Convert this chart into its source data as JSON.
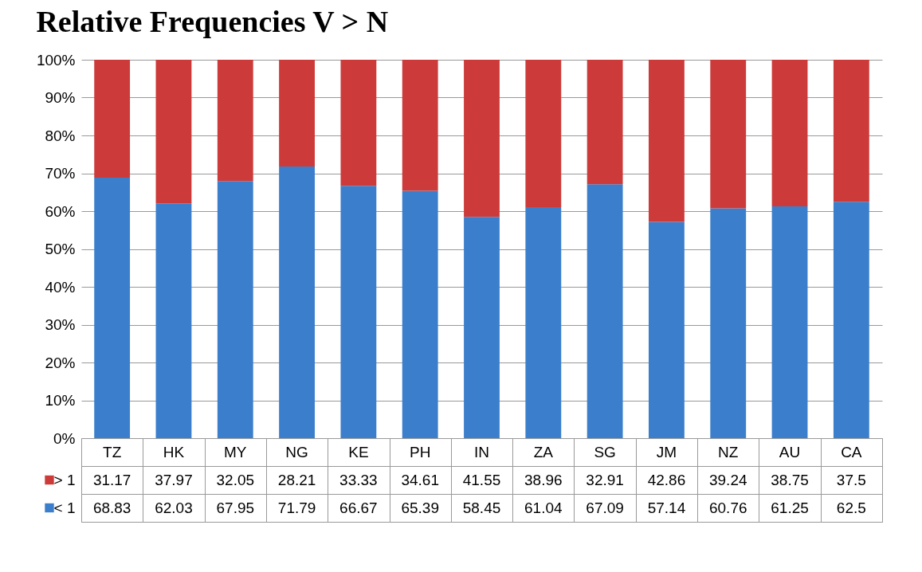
{
  "chart_data": {
    "type": "bar",
    "title": "Relative Frequencies V > N",
    "stacked": true,
    "data_labels": true,
    "grid": "y",
    "legend": "bottom",
    "categories": [
      "TZ",
      "HK",
      "MY",
      "NG",
      "KE",
      "PH",
      "IN",
      "ZA",
      "SG",
      "JM",
      "NZ",
      "AU",
      "CA"
    ],
    "ylim": [
      0,
      100
    ],
    "yticks": [
      {
        "value": 0,
        "label": "0%"
      },
      {
        "value": 10,
        "label": "10%"
      },
      {
        "value": 20,
        "label": "20%"
      },
      {
        "value": 30,
        "label": "30%"
      },
      {
        "value": 40,
        "label": "40%"
      },
      {
        "value": 50,
        "label": "50%"
      },
      {
        "value": 60,
        "label": "60%"
      },
      {
        "value": 70,
        "label": "70%"
      },
      {
        "value": 80,
        "label": "80%"
      },
      {
        "value": 90,
        "label": "90%"
      },
      {
        "value": 100,
        "label": "100%"
      }
    ],
    "series": [
      {
        "name": "< 1",
        "color": "#3b7fcc",
        "values": [
          68.83,
          62.03,
          67.95,
          71.79,
          66.67,
          65.39,
          58.45,
          61.04,
          67.09,
          57.14,
          60.76,
          61.25,
          62.5
        ]
      },
      {
        "name": "> 1",
        "color": "#cc3b3a",
        "values": [
          31.17,
          37.97,
          32.05,
          28.21,
          33.33,
          34.61,
          41.55,
          38.96,
          32.91,
          42.86,
          39.24,
          38.75,
          37.5
        ]
      }
    ]
  }
}
